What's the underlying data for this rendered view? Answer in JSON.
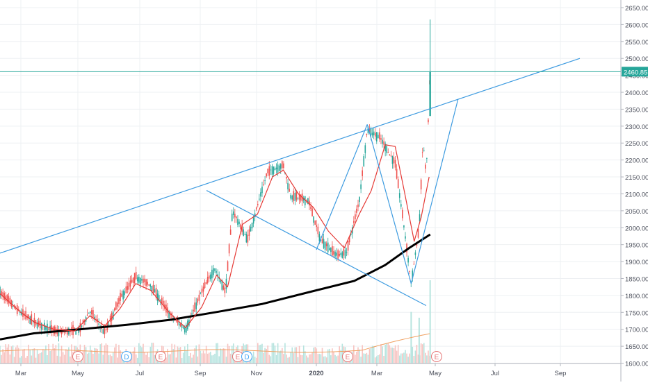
{
  "colors": {
    "background": "#ffffff",
    "grid": "#eef0f3",
    "axis_line": "#b2b5be",
    "axis_text": "#4a4e5a",
    "candle_up": "#26a69a",
    "candle_down": "#ef5350",
    "ema_fast": "#e53935",
    "sma_slow": "#000000",
    "trendline": "#3d9be0",
    "volume_up": "#b7e4df",
    "volume_down": "#f7c4c1",
    "volume_ma": "#f0a060",
    "price_tag_bg": "#26a69a",
    "price_tag_text": "#ffffff",
    "price_line": "#26a69a",
    "event_earnings": "#e57373",
    "event_dividend": "#42a5f5"
  },
  "price_axis": {
    "ticks": [
      "2650.00",
      "2600.00",
      "2550.00",
      "2500.00",
      "2450.00",
      "2400.00",
      "2350.00",
      "2300.00",
      "2250.00",
      "2200.00",
      "2150.00",
      "2100.00",
      "2050.00",
      "2000.00",
      "1950.00",
      "1900.00",
      "1850.00",
      "1800.00",
      "1750.00",
      "1700.00",
      "1650.00",
      "1600.00"
    ],
    "current_price": "2460.85"
  },
  "time_axis": {
    "labels": [
      "Mar",
      "May",
      "Jul",
      "Sep",
      "Nov",
      "2020",
      "Mar",
      "May",
      "Jul",
      "Sep"
    ]
  },
  "events": [
    {
      "type": "earnings",
      "label": "E"
    },
    {
      "type": "dividend",
      "label": "D"
    },
    {
      "type": "earnings",
      "label": "E"
    },
    {
      "type": "earnings",
      "label": "E"
    },
    {
      "type": "dividend",
      "label": "D"
    },
    {
      "type": "earnings",
      "label": "E"
    },
    {
      "type": "earnings",
      "label": "E"
    }
  ],
  "chart_data": {
    "type": "candlestick",
    "ylim": [
      1600,
      2660
    ],
    "trendlines": [
      {
        "from": [
          "2019-01-25",
          1925
        ],
        "to": [
          "2020-08-28",
          2500
        ]
      },
      {
        "from": [
          "2019-08-20",
          2110
        ],
        "to": [
          "2020-03-27",
          1770
        ]
      },
      {
        "from": [
          "2020-03-12",
          1835
        ],
        "to": [
          "2020-04-28",
          2380
        ]
      },
      {
        "from": [
          "2019-12-08",
          1935
        ],
        "to": [
          "2020-01-28",
          2305
        ]
      },
      {
        "from": [
          "2020-01-28",
          2305
        ],
        "to": [
          "2020-03-12",
          1835
        ]
      }
    ],
    "sma_200": [
      [
        "2019-01-25",
        1670
      ],
      [
        "2019-02-28",
        1688
      ],
      [
        "2019-04-15",
        1700
      ],
      [
        "2019-06-01",
        1713
      ],
      [
        "2019-07-15",
        1728
      ],
      [
        "2019-09-01",
        1752
      ],
      [
        "2019-10-15",
        1775
      ],
      [
        "2019-12-01",
        1810
      ],
      [
        "2020-01-15",
        1843
      ],
      [
        "2020-02-15",
        1890
      ],
      [
        "2020-03-10",
        1940
      ],
      [
        "2020-03-31",
        1980
      ]
    ],
    "ema_20": [
      [
        "2019-01-25",
        1805
      ],
      [
        "2019-02-15",
        1750
      ],
      [
        "2019-03-01",
        1720
      ],
      [
        "2019-03-20",
        1700
      ],
      [
        "2019-04-10",
        1695
      ],
      [
        "2019-04-25",
        1740
      ],
      [
        "2019-05-10",
        1710
      ],
      [
        "2019-05-25",
        1760
      ],
      [
        "2019-06-10",
        1835
      ],
      [
        "2019-06-25",
        1815
      ],
      [
        "2019-07-15",
        1745
      ],
      [
        "2019-07-30",
        1705
      ],
      [
        "2019-08-15",
        1765
      ],
      [
        "2019-08-30",
        1860
      ],
      [
        "2019-09-10",
        1825
      ],
      [
        "2019-09-25",
        2010
      ],
      [
        "2019-10-10",
        2040
      ],
      [
        "2019-10-25",
        2150
      ],
      [
        "2019-11-05",
        2170
      ],
      [
        "2019-11-20",
        2100
      ],
      [
        "2019-12-05",
        2060
      ],
      [
        "2019-12-20",
        1990
      ],
      [
        "2020-01-05",
        1940
      ],
      [
        "2020-01-20",
        2040
      ],
      [
        "2020-02-01",
        2110
      ],
      [
        "2020-02-15",
        2245
      ],
      [
        "2020-02-25",
        2240
      ],
      [
        "2020-03-05",
        2110
      ],
      [
        "2020-03-15",
        1960
      ],
      [
        "2020-03-22",
        2030
      ],
      [
        "2020-03-30",
        2150
      ]
    ],
    "price_path": [
      [
        "2019-01-25",
        1810
      ],
      [
        "2019-02-10",
        1760
      ],
      [
        "2019-03-01",
        1720
      ],
      [
        "2019-03-25",
        1690
      ],
      [
        "2019-04-15",
        1700
      ],
      [
        "2019-04-25",
        1755
      ],
      [
        "2019-05-10",
        1690
      ],
      [
        "2019-05-25",
        1790
      ],
      [
        "2019-06-10",
        1855
      ],
      [
        "2019-06-25",
        1830
      ],
      [
        "2019-07-15",
        1740
      ],
      [
        "2019-07-30",
        1700
      ],
      [
        "2019-08-15",
        1810
      ],
      [
        "2019-08-28",
        1880
      ],
      [
        "2019-09-08",
        1810
      ],
      [
        "2019-09-15",
        2050
      ],
      [
        "2019-09-30",
        1965
      ],
      [
        "2019-10-20",
        2165
      ],
      [
        "2019-11-05",
        2185
      ],
      [
        "2019-11-12",
        2095
      ],
      [
        "2019-11-30",
        2080
      ],
      [
        "2019-12-12",
        1965
      ],
      [
        "2019-12-28",
        1920
      ],
      [
        "2020-01-07",
        1925
      ],
      [
        "2020-01-20",
        2080
      ],
      [
        "2020-01-28",
        2290
      ],
      [
        "2020-02-10",
        2265
      ],
      [
        "2020-02-25",
        2190
      ],
      [
        "2020-03-05",
        2000
      ],
      [
        "2020-03-12",
        1835
      ],
      [
        "2020-03-20",
        2000
      ],
      [
        "2020-03-24",
        2260
      ],
      [
        "2020-03-27",
        2150
      ],
      [
        "2020-03-31",
        2460
      ]
    ],
    "volume_spikes": [
      [
        "2020-03-12",
        0.62
      ],
      [
        "2020-03-20",
        0.55
      ],
      [
        "2020-03-31",
        1.0
      ]
    ]
  }
}
